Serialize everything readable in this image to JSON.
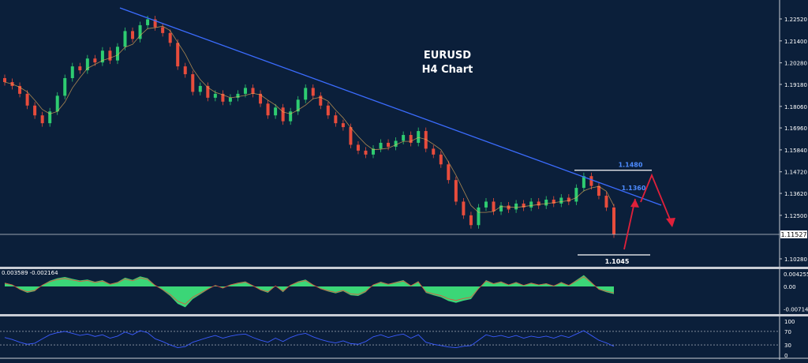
{
  "colors": {
    "background": "#0b1f3a",
    "grid_border": "#c8ccd4",
    "axis_text": "#ffffff",
    "trendline": "#3b6cff",
    "bull_candle": "#2ecc71",
    "bear_candle": "#e74c3c",
    "macd_fill": "#3ee07a",
    "rsi_line": "#3b5bff",
    "annotation_blue": "#4d8bff",
    "annotation_red": "#e0203a",
    "price_label_bg": "#ffffff"
  },
  "chart_data": [
    {
      "type": "candlestick",
      "title": "EURUSD",
      "subtitle": "H4 Chart",
      "ylim": [
        1.098,
        1.23
      ],
      "y_ticks": [
        "1.22520",
        "1.21400",
        "1.20280",
        "1.19180",
        "1.18060",
        "1.16960",
        "1.15840",
        "1.14720",
        "1.13620",
        "1.12500",
        "1.10280"
      ],
      "y_tick_values": [
        1.2252,
        1.214,
        1.2028,
        1.1918,
        1.1806,
        1.1696,
        1.1584,
        1.1472,
        1.1362,
        1.125,
        1.1028
      ],
      "current_price": "1.11527",
      "current_price_value": 1.11527,
      "series": [
        {
          "name": "close",
          "values": [
            1.193,
            1.191,
            1.187,
            1.181,
            1.176,
            1.172,
            1.178,
            1.186,
            1.195,
            1.201,
            1.199,
            1.205,
            1.203,
            1.209,
            1.204,
            1.211,
            1.219,
            1.215,
            1.222,
            1.225,
            1.221,
            1.218,
            1.213,
            1.201,
            1.197,
            1.188,
            1.191,
            1.185,
            1.187,
            1.183,
            1.185,
            1.187,
            1.19,
            1.187,
            1.182,
            1.176,
            1.18,
            1.173,
            1.178,
            1.184,
            1.19,
            1.186,
            1.181,
            1.176,
            1.172,
            1.17,
            1.161,
            1.158,
            1.156,
            1.159,
            1.162,
            1.16,
            1.163,
            1.166,
            1.162,
            1.168,
            1.159,
            1.156,
            1.151,
            1.143,
            1.132,
            1.125,
            1.12,
            1.129,
            1.132,
            1.127,
            1.13,
            1.128,
            1.131,
            1.129,
            1.132,
            1.13,
            1.133,
            1.131,
            1.134,
            1.132,
            1.139,
            1.145,
            1.14,
            1.135,
            1.129,
            1.1153
          ]
        }
      ],
      "annotations": {
        "trendline": true,
        "level_high": "1.1480",
        "level_high_value": 1.148,
        "level_mid": "1.1360",
        "level_mid_value": 1.136,
        "level_low": "1.1045",
        "level_low_value": 1.1045
      }
    },
    {
      "type": "area",
      "header": "0.003589 -0.002164",
      "y_ticks": [
        "0.004255",
        "0.00",
        "-0.007142"
      ],
      "y_tick_values": [
        0.004255,
        0.0,
        -0.007142
      ],
      "ylim": [
        -0.0078,
        0.0048
      ],
      "values": [
        0.0012,
        0.0006,
        -0.001,
        -0.002,
        -0.0015,
        0.0005,
        0.0018,
        0.0026,
        0.003,
        0.0024,
        0.0019,
        0.0022,
        0.0015,
        0.002,
        0.0008,
        0.0014,
        0.0028,
        0.0021,
        0.0032,
        0.0026,
        0.0004,
        -0.0012,
        -0.003,
        -0.0055,
        -0.0066,
        -0.004,
        -0.0025,
        -0.001,
        0.0004,
        -0.0006,
        0.0006,
        0.0012,
        0.0016,
        0.0003,
        -0.0012,
        -0.002,
        0.0002,
        -0.0018,
        0.0005,
        0.0016,
        0.0022,
        0.0006,
        -0.0008,
        -0.0016,
        -0.0022,
        -0.0015,
        -0.0028,
        -0.003,
        -0.0018,
        0.0006,
        0.0015,
        0.0008,
        0.0014,
        0.002,
        0.0003,
        0.0017,
        -0.002,
        -0.0028,
        -0.0034,
        -0.0046,
        -0.0052,
        -0.0045,
        -0.004,
        -0.0008,
        0.002,
        0.001,
        0.0016,
        0.0006,
        0.0014,
        0.0004,
        0.0012,
        0.0006,
        0.001,
        0.0002,
        0.0014,
        0.0004,
        0.002,
        0.0036,
        0.0014,
        -0.001,
        -0.0018,
        -0.0024
      ]
    },
    {
      "type": "line",
      "y_ticks": [
        "100",
        "70",
        "30",
        "0"
      ],
      "y_tick_values": [
        100,
        70,
        30,
        0
      ],
      "ylim": [
        0,
        100
      ],
      "values": [
        52,
        46,
        38,
        32,
        35,
        48,
        60,
        66,
        70,
        64,
        58,
        62,
        55,
        60,
        50,
        56,
        68,
        60,
        72,
        66,
        48,
        40,
        30,
        22,
        25,
        38,
        45,
        52,
        58,
        50,
        56,
        60,
        62,
        52,
        44,
        38,
        50,
        40,
        52,
        60,
        64,
        54,
        46,
        40,
        36,
        42,
        34,
        32,
        40,
        54,
        60,
        52,
        58,
        62,
        50,
        60,
        38,
        32,
        28,
        24,
        22,
        26,
        28,
        44,
        60,
        54,
        58,
        52,
        58,
        50,
        56,
        52,
        56,
        50,
        58,
        52,
        62,
        72,
        58,
        44,
        36,
        26
      ]
    }
  ]
}
